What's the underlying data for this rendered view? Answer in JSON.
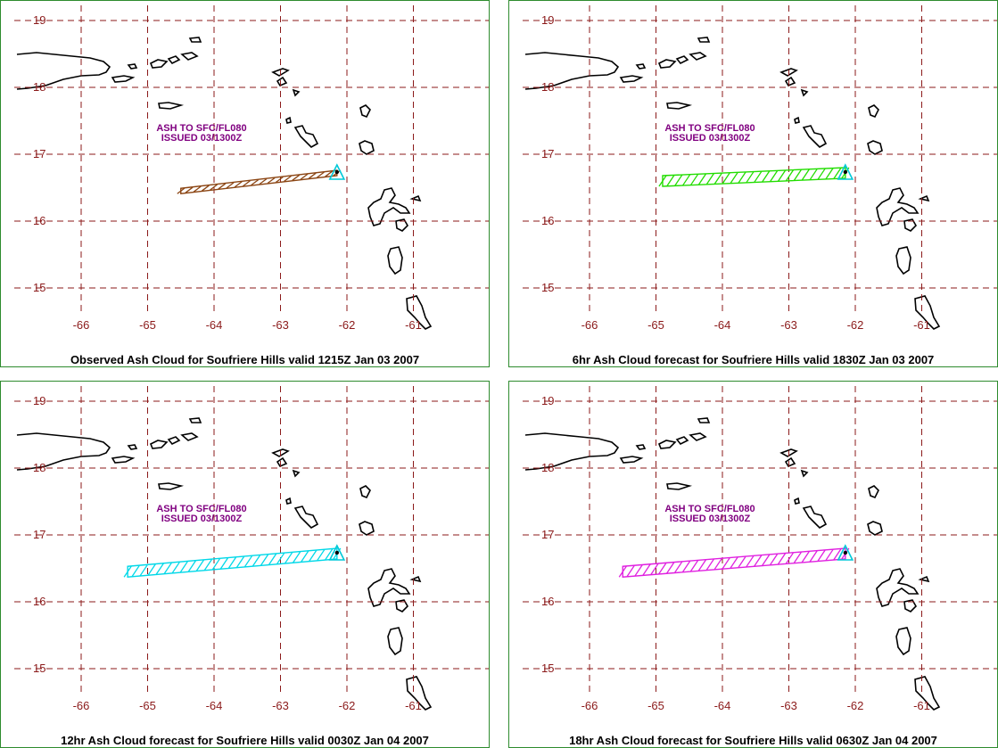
{
  "map": {
    "lon_ticks": [
      "-66",
      "-65",
      "-64",
      "-63",
      "-62",
      "-61"
    ],
    "lat_ticks": [
      "19",
      "18",
      "17",
      "16",
      "15"
    ],
    "grid_color": "#8b1a1a",
    "volcano_marker": "volcano-triangle-icon"
  },
  "panels": [
    {
      "caption": "Observed Ash Cloud for Soufriere  Hills valid 1215Z Jan 03 2007",
      "note_line1": "ASH TO SFC/FL080",
      "note_line2": "ISSUED 03/1300Z",
      "ash_color": "#8b4513",
      "ash_west_lon": -64.5,
      "ash_west_lat": 16.45
    },
    {
      "caption": "6hr Ash Cloud forecast for Soufriere  Hills valid 1830Z Jan 03 2007",
      "note_line1": "ASH TO SFC/FL080",
      "note_line2": "ISSUED 03/1300Z",
      "ash_color": "#22dd00",
      "ash_west_lon": -64.9,
      "ash_west_lat": 16.6
    },
    {
      "caption": "12hr Ash Cloud forecast for Soufriere  Hills valid 0030Z Jan 04 2007",
      "note_line1": "ASH TO SFC/FL080",
      "note_line2": "ISSUED 03/1300Z",
      "ash_color": "#00d8e8",
      "ash_west_lon": -65.3,
      "ash_west_lat": 16.45
    },
    {
      "caption": "18hr Ash Cloud forecast for Soufriere  Hills valid 0630Z Jan 04 2007",
      "note_line1": "ASH TO SFC/FL080",
      "note_line2": "ISSUED 03/1300Z",
      "ash_color": "#e020e0",
      "ash_west_lon": -65.5,
      "ash_west_lat": 16.45
    }
  ]
}
